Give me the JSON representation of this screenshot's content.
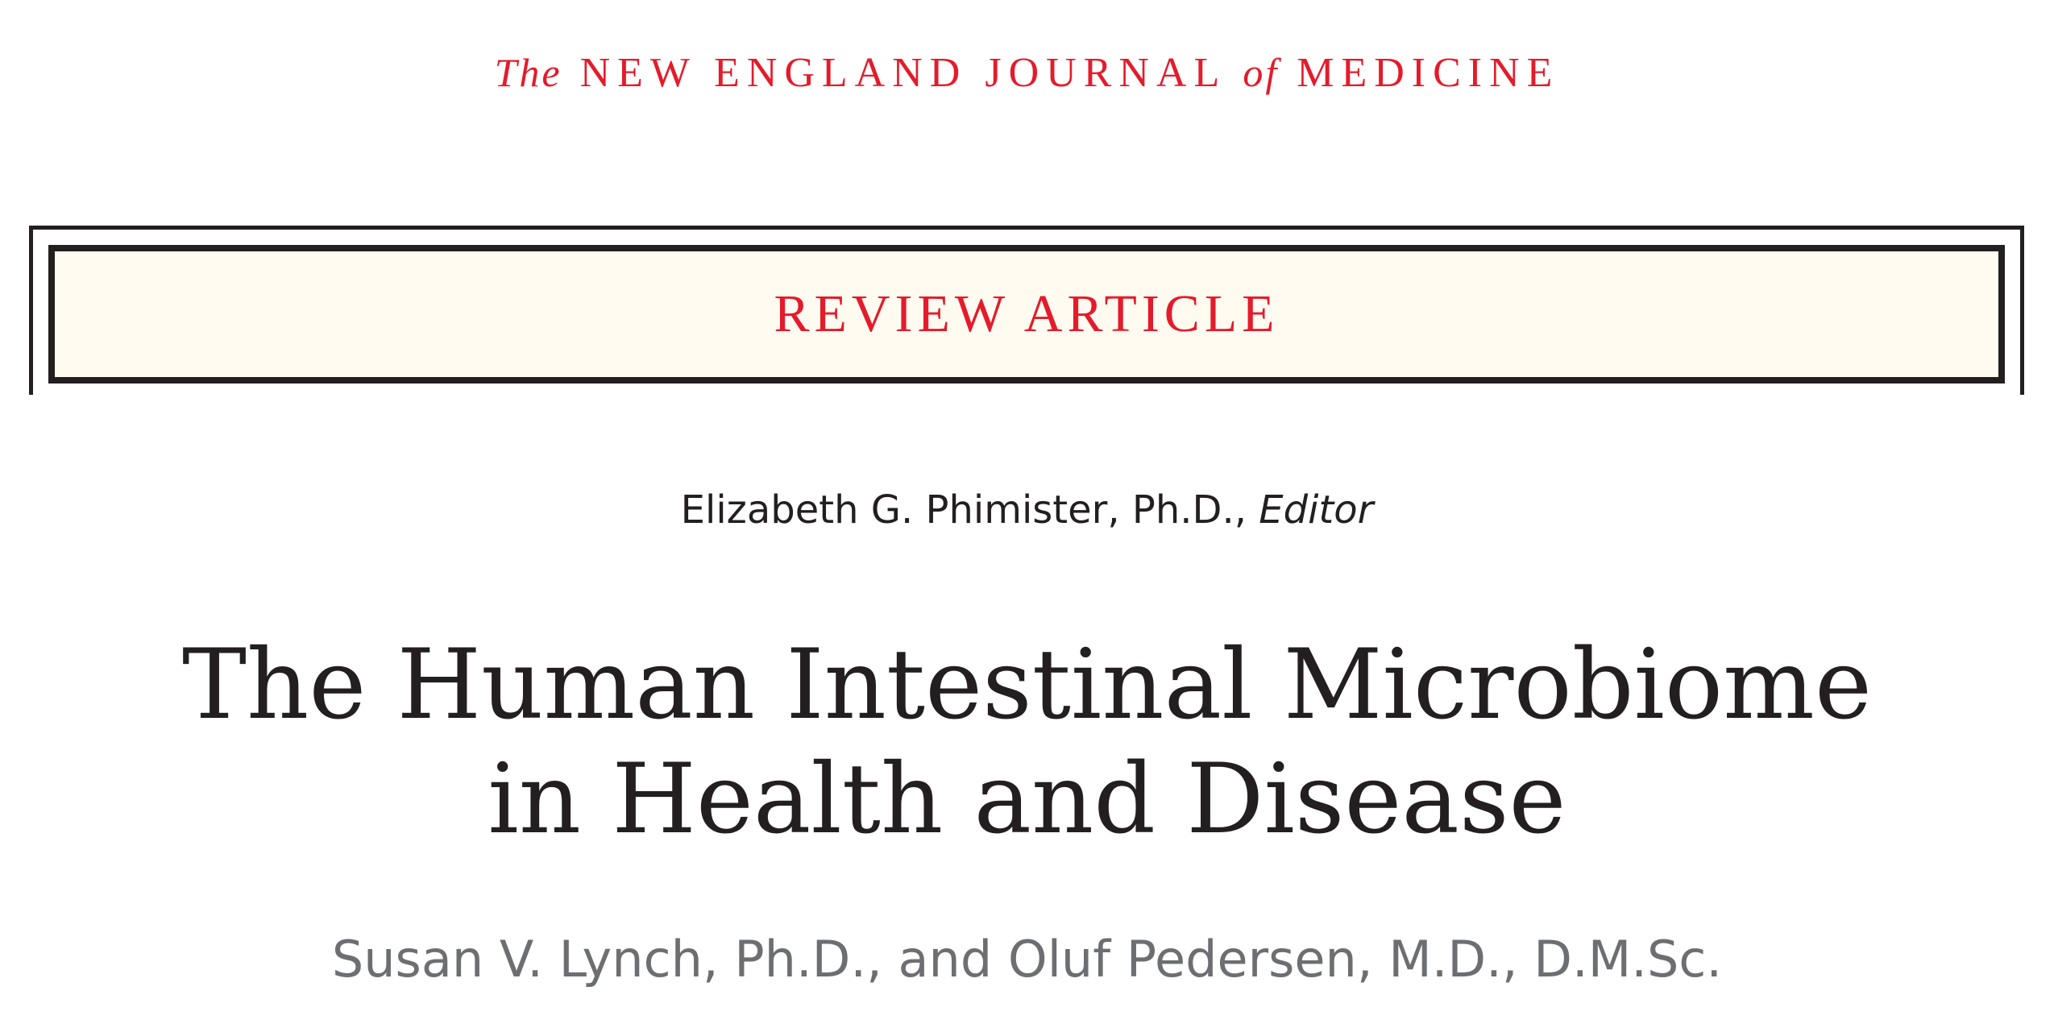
{
  "masthead": {
    "the": "The",
    "name_a": "NEW ENGLAND JOURNAL",
    "of": "of",
    "name_b": "MEDICINE"
  },
  "banner": {
    "label": "REVIEW ARTICLE"
  },
  "editor": {
    "name": "Elizabeth G. Phimister, Ph.D., ",
    "role": "Editor"
  },
  "title": {
    "line1": "The Human Intestinal Microbiome",
    "line2": "in Health and Disease"
  },
  "authors": "Susan V. Lynch, Ph.D., and Oluf Pedersen, M.D., D.M.Sc.",
  "colors": {
    "accent": "#e41b2b",
    "text": "#231f20",
    "authors_text": "#6d6e71",
    "banner_bg": "#fffbf1"
  }
}
